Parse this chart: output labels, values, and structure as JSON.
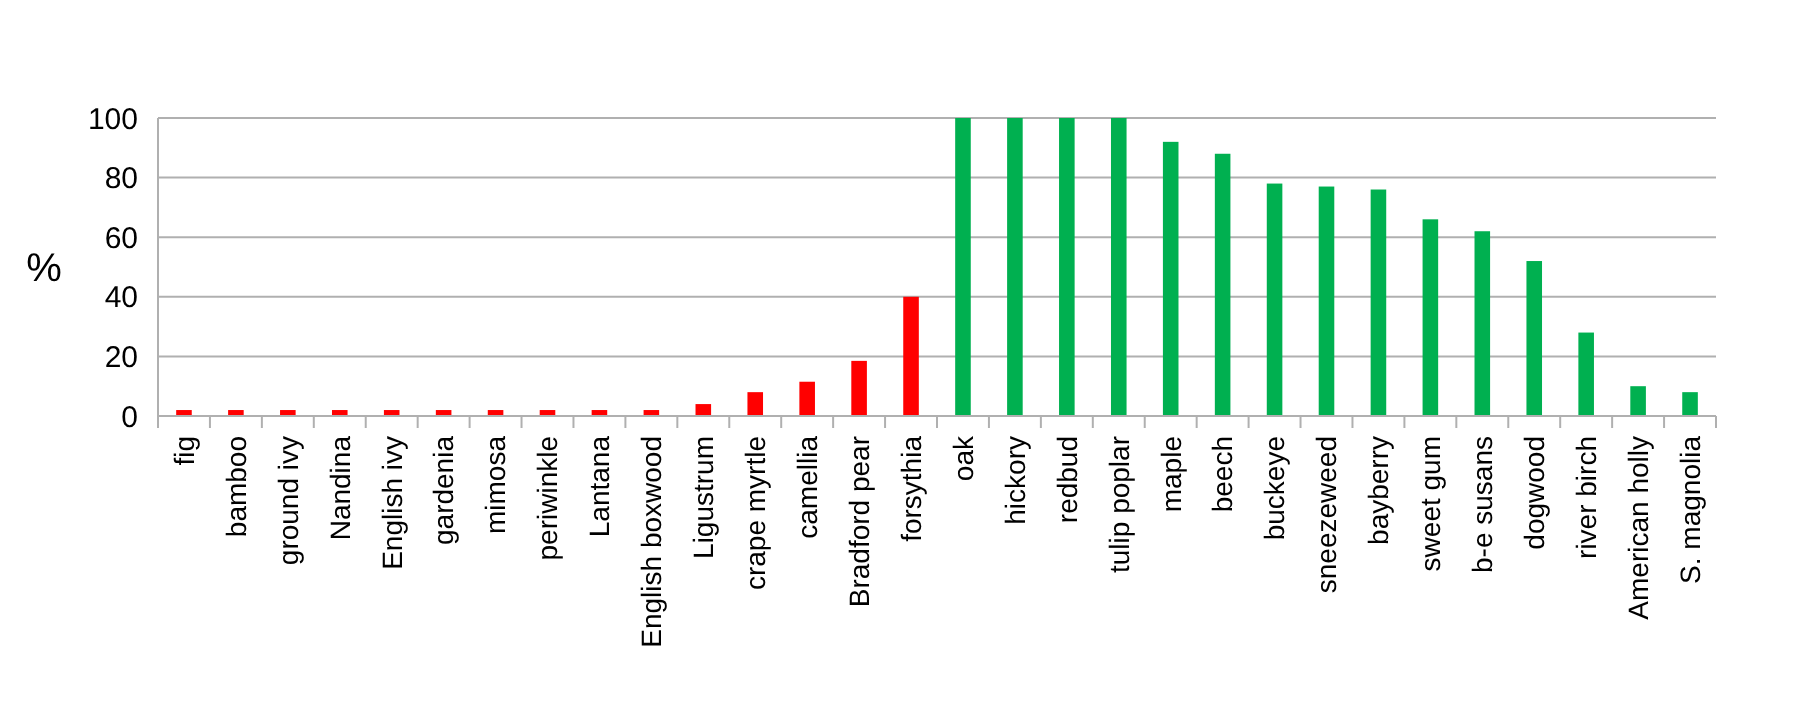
{
  "chart_data": {
    "type": "bar",
    "ylabel": "%",
    "categories": [
      "fig",
      "bamboo",
      "ground ivy",
      "Nandina",
      "English ivy",
      "gardenia",
      "mimosa",
      "periwinkle",
      "Lantana",
      "English boxwood",
      "Ligustrum",
      "crape myrtle",
      "camellia",
      "Bradford pear",
      "forsythia",
      "oak",
      "hickory",
      "redbud",
      "tulip poplar",
      "maple",
      "beech",
      "buckeye",
      "sneezeweed",
      "bayberry",
      "sweet gum",
      "b-e susans",
      "dogwood",
      "river birch",
      "American holly",
      "S. magnolia"
    ],
    "values": [
      2,
      2,
      2,
      2,
      2,
      2,
      2,
      2,
      2,
      2,
      4,
      8,
      11.5,
      18.5,
      40,
      100,
      100,
      100,
      100,
      92,
      88,
      78,
      77,
      76,
      66,
      62,
      52,
      28,
      10,
      8
    ],
    "colors": [
      "#ff0000",
      "#ff0000",
      "#ff0000",
      "#ff0000",
      "#ff0000",
      "#ff0000",
      "#ff0000",
      "#ff0000",
      "#ff0000",
      "#ff0000",
      "#ff0000",
      "#ff0000",
      "#ff0000",
      "#ff0000",
      "#ff0000",
      "#00b050",
      "#00b050",
      "#00b050",
      "#00b050",
      "#00b050",
      "#00b050",
      "#00b050",
      "#00b050",
      "#00b050",
      "#00b050",
      "#00b050",
      "#00b050",
      "#00b050",
      "#00b050",
      "#00b050"
    ],
    "ylim": [
      0,
      100
    ],
    "yticks": [
      0,
      20,
      40,
      60,
      80,
      100
    ],
    "grid": "y"
  }
}
